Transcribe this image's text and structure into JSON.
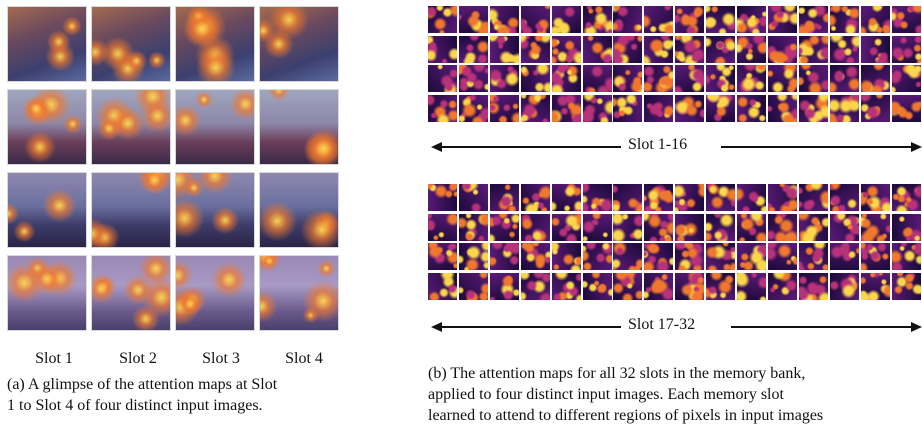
{
  "left_panel": {
    "slot_labels": [
      "Slot 1",
      "Slot 2",
      "Slot 3",
      "Slot 4"
    ],
    "caption_lines": [
      "(a) A glimpse of the attention maps at Slot",
      "1 to Slot 4 of four distinct input images."
    ]
  },
  "right_panel": {
    "bank_top_label": "Slot 1-16",
    "bank_bottom_label": "Slot 17-32",
    "caption_lines": [
      "(b) The attention maps for all 32 slots in the memory bank,",
      "applied to four distinct input images. Each memory slot",
      "learned to attend to different regions of pixels in input images"
    ]
  },
  "colors": {
    "heat_dark": "#1b0a3a",
    "heat_purple": "#5b1a78",
    "heat_magenta": "#b8327a",
    "heat_orange": "#f0782e",
    "heat_yellow": "#fbd64a"
  }
}
